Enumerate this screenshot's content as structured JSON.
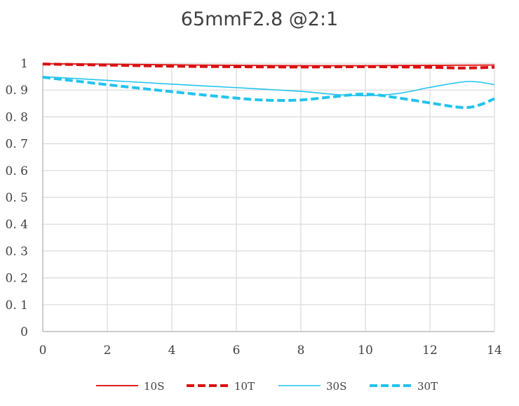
{
  "chart_data": {
    "type": "line",
    "title": "65mmF2.8 @2:1",
    "xlabel": "",
    "ylabel": "",
    "xlim": [
      0,
      14
    ],
    "ylim": [
      0,
      1
    ],
    "xticks": [
      "0",
      "2",
      "4",
      "6",
      "8",
      "10",
      "12",
      "14"
    ],
    "yticks": [
      "0",
      "0. 1",
      "0. 2",
      "0. 3",
      "0. 4",
      "0. 5",
      "0. 6",
      "0. 7",
      "0. 8",
      "0. 9",
      "1"
    ],
    "grid": true,
    "legend_position": "bottom",
    "series": [
      {
        "name": "10S",
        "color": "#e02020",
        "style": "solid",
        "width": 2,
        "x": [
          0,
          2,
          4,
          6,
          8,
          10,
          12,
          14
        ],
        "y": [
          0.998,
          0.996,
          0.994,
          0.992,
          0.991,
          0.991,
          0.992,
          0.993
        ]
      },
      {
        "name": "10T",
        "color": "#d9100f",
        "style": "dashed",
        "width": 4,
        "x": [
          0,
          2,
          4,
          6,
          8,
          10,
          12,
          13,
          14
        ],
        "y": [
          0.997,
          0.993,
          0.989,
          0.987,
          0.986,
          0.987,
          0.985,
          0.982,
          0.985
        ]
      },
      {
        "name": "30S",
        "color": "#22c3ee",
        "style": "solid",
        "width": 1.6,
        "x": [
          0,
          2,
          4,
          6,
          8,
          9,
          10,
          11,
          12,
          13,
          13.5,
          14
        ],
        "y": [
          0.95,
          0.936,
          0.922,
          0.909,
          0.895,
          0.884,
          0.879,
          0.887,
          0.91,
          0.93,
          0.93,
          0.92
        ]
      },
      {
        "name": "30T",
        "color": "#22c3ee",
        "style": "dashed",
        "width": 4,
        "x": [
          0,
          2,
          4,
          6,
          7,
          8,
          9,
          10,
          11,
          12,
          13,
          13.5,
          14
        ],
        "y": [
          0.948,
          0.92,
          0.894,
          0.87,
          0.862,
          0.863,
          0.875,
          0.885,
          0.871,
          0.852,
          0.835,
          0.843,
          0.868
        ]
      }
    ]
  }
}
